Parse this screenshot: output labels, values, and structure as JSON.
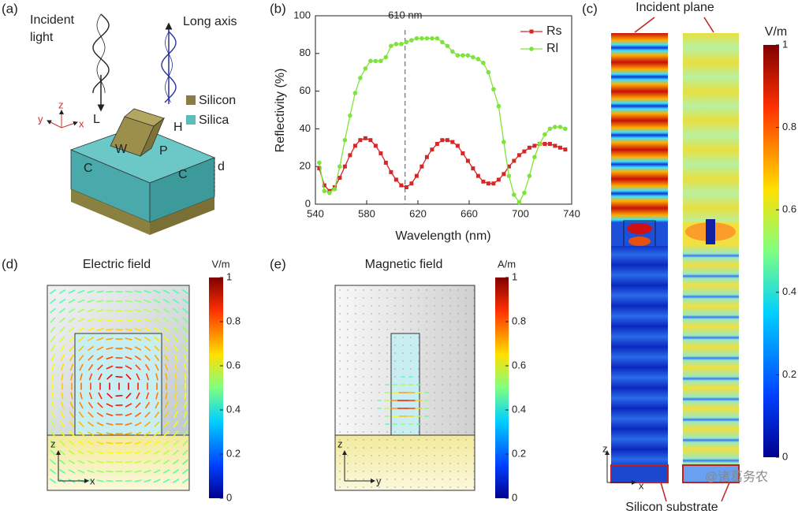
{
  "panel_labels": [
    "(a)",
    "(b)",
    "(c)",
    "(d)",
    "(e)"
  ],
  "panel_a": {
    "incident_light": [
      "Incident",
      "light"
    ],
    "long_axis": "Long axis",
    "legend": [
      "Silicon",
      "Silica"
    ],
    "axes": [
      "x",
      "y",
      "z"
    ],
    "dims": [
      "L",
      "H",
      "W",
      "P",
      "C",
      "C",
      "d"
    ]
  },
  "chart_data": {
    "type": "line",
    "x_label": "Wavelength (nm)",
    "y_label": "Reflectivity (%)",
    "annotation": {
      "value": 610,
      "label": "610 nm"
    },
    "x": [
      543,
      547,
      551,
      555,
      559,
      563,
      567,
      571,
      575,
      579,
      583,
      587,
      591,
      595,
      599,
      603,
      607,
      611,
      615,
      619,
      623,
      627,
      631,
      635,
      639,
      643,
      647,
      651,
      655,
      659,
      663,
      667,
      671,
      675,
      679,
      683,
      687,
      691,
      695,
      699,
      703,
      707,
      711,
      715,
      719,
      723,
      727,
      731,
      735
    ],
    "series": [
      {
        "name": "Rs",
        "color": "#d62728",
        "marker": "square",
        "values": [
          19,
          10,
          7,
          9,
          14,
          20,
          26,
          31,
          34,
          35,
          34,
          31,
          27,
          22,
          17,
          13,
          10,
          9,
          11,
          15,
          20,
          25,
          29,
          32,
          34,
          34,
          33,
          31,
          27,
          23,
          19,
          15,
          12,
          11,
          11,
          13,
          16,
          20,
          23,
          26,
          28,
          30,
          31,
          32,
          32,
          32,
          31,
          30,
          29
        ]
      },
      {
        "name": "Rl",
        "color": "#7ee33a",
        "marker": "circle",
        "values": [
          22,
          7,
          6,
          8,
          20,
          34,
          47,
          59,
          67,
          72,
          76,
          76,
          76,
          78,
          84,
          85,
          85,
          86,
          87,
          88,
          88,
          88,
          88,
          88,
          86,
          84,
          81,
          79,
          79,
          79,
          78,
          77,
          75,
          70,
          61,
          52,
          33,
          15,
          5,
          1,
          6,
          15,
          25,
          32,
          37,
          40,
          41,
          41,
          40
        ]
      }
    ],
    "xlim": [
      540,
      740
    ],
    "xticks": [
      540,
      580,
      620,
      660,
      700,
      740
    ],
    "ylim": [
      0,
      100
    ],
    "yticks": [
      0,
      20,
      40,
      60,
      80,
      100
    ],
    "legend": "upper right"
  },
  "panel_c": {
    "top_label": "Incident plane",
    "bottom_label": "Silicon substrate",
    "unit": "V/m",
    "colorbar_lim": [
      0,
      1
    ],
    "colorbar_ticks": [
      0,
      0.2,
      0.4,
      0.6,
      0.8,
      1
    ],
    "axes": [
      "z",
      "x"
    ],
    "watermark": "@诸葛务农"
  },
  "panel_d": {
    "title": "Electric field",
    "unit": "V/m",
    "colorbar_lim": [
      0,
      1
    ],
    "colorbar_ticks": [
      0,
      0.2,
      0.4,
      0.6,
      0.8,
      1
    ],
    "axes": [
      "z",
      "x"
    ]
  },
  "panel_e": {
    "title": "Magnetic field",
    "unit": "A/m",
    "colorbar_lim": [
      0,
      1
    ],
    "colorbar_ticks": [
      0,
      0.2,
      0.4,
      0.6,
      0.8,
      1
    ],
    "axes": [
      "z",
      "y"
    ]
  }
}
